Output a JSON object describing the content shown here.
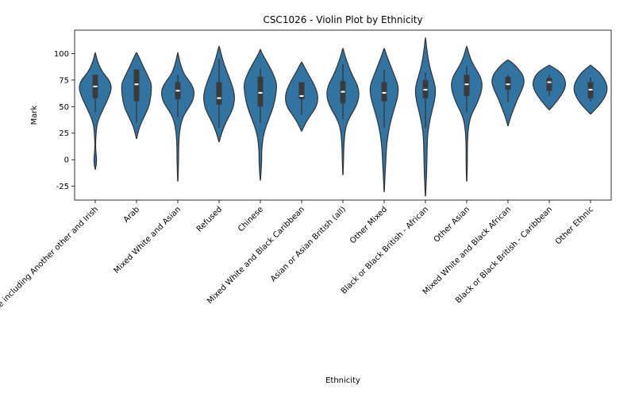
{
  "chart_data": {
    "type": "violin",
    "title": "CSC1026 - Violin Plot by Ethnicity",
    "xlabel": "Ethnicity",
    "ylabel": "Mark",
    "ylim": [
      -38,
      122
    ],
    "yticks": [
      -25,
      0,
      25,
      50,
      75,
      100
    ],
    "grid": false,
    "legend": "none",
    "color": "#3274a1",
    "edge_color": "#333333",
    "categories": [
      "White including Another other and Irish",
      "Arab",
      "Mixed White and Asian",
      "Refused",
      "Chinese",
      "Mixed White and Black Caribbean",
      "Asian or Asian British (all)",
      "Other Mixed",
      "Black or Black British - African",
      "Other Asian",
      "Mixed White and Black African",
      "Black or Black British - Caribbean",
      "Other Ethnic"
    ],
    "violins": [
      {
        "lo": -9,
        "hi": 101,
        "q1": 58,
        "median": 69,
        "q3": 80,
        "wlo": 45,
        "whi": 80,
        "profile": [
          [
            -9,
            0.01
          ],
          [
            -3,
            0.08
          ],
          [
            3,
            0.07
          ],
          [
            10,
            0.02
          ],
          [
            20,
            0.03
          ],
          [
            35,
            0.1
          ],
          [
            50,
            0.55
          ],
          [
            60,
            0.85
          ],
          [
            68,
            1.0
          ],
          [
            75,
            0.85
          ],
          [
            82,
            0.45
          ],
          [
            90,
            0.2
          ],
          [
            96,
            0.08
          ],
          [
            101,
            0.01
          ]
        ]
      },
      {
        "lo": 20,
        "hi": 101,
        "q1": 55,
        "median": 71,
        "q3": 85,
        "wlo": 35,
        "whi": 85,
        "profile": [
          [
            20,
            0.01
          ],
          [
            30,
            0.15
          ],
          [
            40,
            0.45
          ],
          [
            50,
            0.75
          ],
          [
            58,
            0.85
          ],
          [
            65,
            0.9
          ],
          [
            72,
            0.9
          ],
          [
            80,
            0.65
          ],
          [
            88,
            0.4
          ],
          [
            95,
            0.2
          ],
          [
            101,
            0.01
          ]
        ]
      },
      {
        "lo": -20,
        "hi": 101,
        "q1": 57,
        "median": 65,
        "q3": 73,
        "wlo": 40,
        "whi": 80,
        "profile": [
          [
            -20,
            0.01
          ],
          [
            -10,
            0.03
          ],
          [
            0,
            0.05
          ],
          [
            10,
            0.05
          ],
          [
            25,
            0.08
          ],
          [
            40,
            0.28
          ],
          [
            50,
            0.7
          ],
          [
            57,
            0.95
          ],
          [
            65,
            1.0
          ],
          [
            72,
            0.8
          ],
          [
            80,
            0.4
          ],
          [
            88,
            0.2
          ],
          [
            95,
            0.08
          ],
          [
            101,
            0.01
          ]
        ]
      },
      {
        "lo": 17,
        "hi": 107,
        "q1": 52,
        "median": 58,
        "q3": 73,
        "wlo": 30,
        "whi": 95,
        "profile": [
          [
            17,
            0.01
          ],
          [
            25,
            0.15
          ],
          [
            35,
            0.4
          ],
          [
            45,
            0.75
          ],
          [
            52,
            0.9
          ],
          [
            60,
            0.95
          ],
          [
            70,
            0.8
          ],
          [
            80,
            0.55
          ],
          [
            90,
            0.3
          ],
          [
            100,
            0.12
          ],
          [
            107,
            0.01
          ]
        ]
      },
      {
        "lo": -19,
        "hi": 104,
        "q1": 50,
        "median": 63,
        "q3": 78,
        "wlo": 35,
        "whi": 86,
        "profile": [
          [
            -19,
            0.01
          ],
          [
            -10,
            0.05
          ],
          [
            0,
            0.08
          ],
          [
            10,
            0.08
          ],
          [
            25,
            0.2
          ],
          [
            40,
            0.55
          ],
          [
            50,
            0.8
          ],
          [
            62,
            0.95
          ],
          [
            72,
            1.0
          ],
          [
            82,
            0.75
          ],
          [
            92,
            0.4
          ],
          [
            100,
            0.1
          ],
          [
            104,
            0.01
          ]
        ]
      },
      {
        "lo": 27,
        "hi": 92,
        "q1": 57,
        "median": 60,
        "q3": 73,
        "wlo": 42,
        "whi": 73,
        "profile": [
          [
            27,
            0.01
          ],
          [
            35,
            0.25
          ],
          [
            42,
            0.55
          ],
          [
            50,
            0.9
          ],
          [
            58,
            1.0
          ],
          [
            66,
            0.9
          ],
          [
            74,
            0.65
          ],
          [
            82,
            0.35
          ],
          [
            88,
            0.15
          ],
          [
            92,
            0.01
          ]
        ]
      },
      {
        "lo": -14,
        "hi": 105,
        "q1": 53,
        "median": 64,
        "q3": 74,
        "wlo": 38,
        "whi": 90,
        "profile": [
          [
            -14,
            0.01
          ],
          [
            0,
            0.04
          ],
          [
            15,
            0.06
          ],
          [
            30,
            0.15
          ],
          [
            40,
            0.4
          ],
          [
            50,
            0.8
          ],
          [
            60,
            1.0
          ],
          [
            70,
            0.9
          ],
          [
            80,
            0.55
          ],
          [
            90,
            0.3
          ],
          [
            98,
            0.12
          ],
          [
            105,
            0.01
          ]
        ]
      },
      {
        "lo": -30,
        "hi": 105,
        "q1": 55,
        "median": 63,
        "q3": 73,
        "wlo": 30,
        "whi": 85,
        "profile": [
          [
            -30,
            0.01
          ],
          [
            -15,
            0.05
          ],
          [
            0,
            0.1
          ],
          [
            15,
            0.15
          ],
          [
            30,
            0.3
          ],
          [
            45,
            0.55
          ],
          [
            55,
            0.75
          ],
          [
            62,
            0.85
          ],
          [
            70,
            0.85
          ],
          [
            80,
            0.6
          ],
          [
            90,
            0.35
          ],
          [
            98,
            0.15
          ],
          [
            105,
            0.01
          ]
        ]
      },
      {
        "lo": -34,
        "hi": 115,
        "q1": 58,
        "median": 66,
        "q3": 75,
        "wlo": 30,
        "whi": 82,
        "profile": [
          [
            -34,
            0.01
          ],
          [
            -20,
            0.05
          ],
          [
            -5,
            0.08
          ],
          [
            10,
            0.1
          ],
          [
            25,
            0.13
          ],
          [
            40,
            0.3
          ],
          [
            55,
            0.55
          ],
          [
            65,
            0.62
          ],
          [
            72,
            0.55
          ],
          [
            82,
            0.35
          ],
          [
            92,
            0.2
          ],
          [
            100,
            0.12
          ],
          [
            108,
            0.05
          ],
          [
            115,
            0.01
          ]
        ]
      },
      {
        "lo": -20,
        "hi": 107,
        "q1": 60,
        "median": 71,
        "q3": 80,
        "wlo": 45,
        "whi": 88,
        "profile": [
          [
            -20,
            0.01
          ],
          [
            -10,
            0.03
          ],
          [
            0,
            0.04
          ],
          [
            10,
            0.04
          ],
          [
            25,
            0.06
          ],
          [
            40,
            0.2
          ],
          [
            52,
            0.6
          ],
          [
            62,
            0.85
          ],
          [
            70,
            0.95
          ],
          [
            78,
            0.85
          ],
          [
            88,
            0.45
          ],
          [
            96,
            0.2
          ],
          [
            107,
            0.01
          ]
        ]
      },
      {
        "lo": 32,
        "hi": 94,
        "q1": 66,
        "median": 71,
        "q3": 78,
        "wlo": 55,
        "whi": 80,
        "profile": [
          [
            32,
            0.01
          ],
          [
            40,
            0.15
          ],
          [
            50,
            0.4
          ],
          [
            58,
            0.6
          ],
          [
            66,
            0.85
          ],
          [
            73,
            1.0
          ],
          [
            80,
            0.9
          ],
          [
            86,
            0.6
          ],
          [
            91,
            0.3
          ],
          [
            94,
            0.01
          ]
        ]
      },
      {
        "lo": 47,
        "hi": 89,
        "q1": 65,
        "median": 73,
        "q3": 77,
        "wlo": 60,
        "whi": 80,
        "profile": [
          [
            47,
            0.01
          ],
          [
            53,
            0.35
          ],
          [
            60,
            0.7
          ],
          [
            67,
            0.95
          ],
          [
            73,
            1.0
          ],
          [
            79,
            0.85
          ],
          [
            84,
            0.55
          ],
          [
            89,
            0.01
          ]
        ]
      },
      {
        "lo": 43,
        "hi": 89,
        "q1": 58,
        "median": 66,
        "q3": 73,
        "wlo": 55,
        "whi": 78,
        "profile": [
          [
            43,
            0.01
          ],
          [
            50,
            0.45
          ],
          [
            57,
            0.8
          ],
          [
            64,
            1.0
          ],
          [
            70,
            1.0
          ],
          [
            77,
            0.8
          ],
          [
            83,
            0.5
          ],
          [
            89,
            0.01
          ]
        ]
      }
    ]
  }
}
